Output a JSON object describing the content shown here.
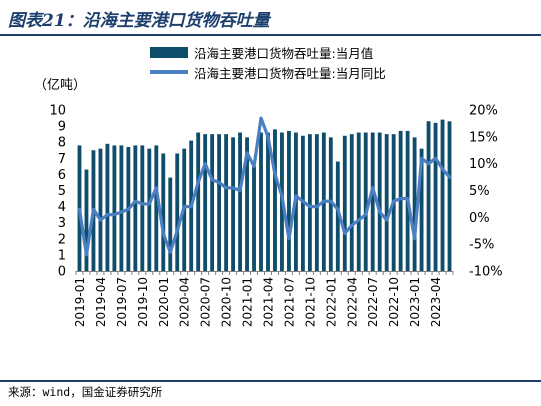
{
  "header": {
    "title": "图表21：沿海主要港口货物吞吐量"
  },
  "footer": {
    "source": "来源：wind，国金证券研究所"
  },
  "chart_data": {
    "type": "bar",
    "unit_label": "（亿吨）",
    "categories": [
      "2019-01",
      "2019-02",
      "2019-03",
      "2019-04",
      "2019-05",
      "2019-06",
      "2019-07",
      "2019-08",
      "2019-09",
      "2019-10",
      "2019-11",
      "2019-12",
      "2020-01",
      "2020-02",
      "2020-03",
      "2020-04",
      "2020-05",
      "2020-06",
      "2020-07",
      "2020-08",
      "2020-09",
      "2020-10",
      "2020-11",
      "2020-12",
      "2021-01",
      "2021-02",
      "2021-03",
      "2021-04",
      "2021-05",
      "2021-06",
      "2021-07",
      "2021-08",
      "2021-09",
      "2021-10",
      "2021-11",
      "2021-12",
      "2022-01",
      "2022-02",
      "2022-03",
      "2022-04",
      "2022-05",
      "2022-06",
      "2022-07",
      "2022-08",
      "2022-09",
      "2022-10",
      "2022-11",
      "2022-12",
      "2023-01",
      "2023-02",
      "2023-03",
      "2023-04",
      "2023-05",
      "2023-06"
    ],
    "x_tick_labels": [
      "2019-01",
      "2019-04",
      "2019-07",
      "2019-10",
      "2020-01",
      "2020-04",
      "2020-07",
      "2020-10",
      "2021-01",
      "2021-04",
      "2021-07",
      "2021-10",
      "2022-01",
      "2022-04",
      "2022-07",
      "2022-10",
      "2023-01",
      "2023-04"
    ],
    "y_left": {
      "ylim": [
        0,
        10
      ],
      "ticks": [
        "0",
        "1",
        "2",
        "3",
        "4",
        "5",
        "6",
        "7",
        "8",
        "9",
        "10"
      ]
    },
    "y_right": {
      "ylim": [
        -10,
        20
      ],
      "ticks": [
        "-10%",
        "-5%",
        "0%",
        "5%",
        "10%",
        "15%",
        "20%"
      ]
    },
    "grid": false,
    "legend_position": "top",
    "series": [
      {
        "name": "沿海主要港口货物吞吐量:当月值",
        "type": "bar",
        "axis": "left",
        "color": "#0f4d6b",
        "values": [
          7.8,
          6.3,
          7.5,
          7.6,
          7.9,
          7.8,
          7.8,
          7.7,
          7.8,
          7.8,
          7.6,
          7.8,
          7.3,
          5.8,
          7.3,
          7.6,
          8.1,
          8.6,
          8.5,
          8.5,
          8.5,
          8.5,
          8.3,
          8.6,
          8.3,
          6.5,
          8.6,
          8.6,
          8.8,
          8.6,
          8.7,
          8.6,
          8.4,
          8.5,
          8.5,
          8.6,
          8.3,
          6.8,
          8.4,
          8.5,
          8.6,
          8.6,
          8.6,
          8.6,
          8.5,
          8.5,
          8.7,
          8.7,
          8.3,
          7.6,
          9.3,
          9.2,
          9.4,
          9.3
        ]
      },
      {
        "name": "沿海主要港口货物吞吐量:当月同比",
        "type": "line",
        "axis": "right",
        "color": "#4a7fc1",
        "values": [
          1.5,
          -7,
          1.5,
          -0.5,
          0.5,
          0.5,
          1,
          1.5,
          3,
          2.5,
          2.5,
          5.5,
          -3,
          -6.5,
          -2.5,
          2,
          2,
          6.5,
          10,
          7,
          6.5,
          5.5,
          5.5,
          5,
          12,
          9.5,
          18.5,
          15,
          8,
          4,
          -4,
          4,
          3,
          2,
          2,
          3,
          3,
          1.5,
          -3,
          -1.5,
          -0.5,
          0.5,
          5.5,
          1,
          -0.5,
          3,
          3.5,
          3.5,
          -4,
          11,
          10,
          11,
          9,
          7.5
        ]
      }
    ]
  }
}
